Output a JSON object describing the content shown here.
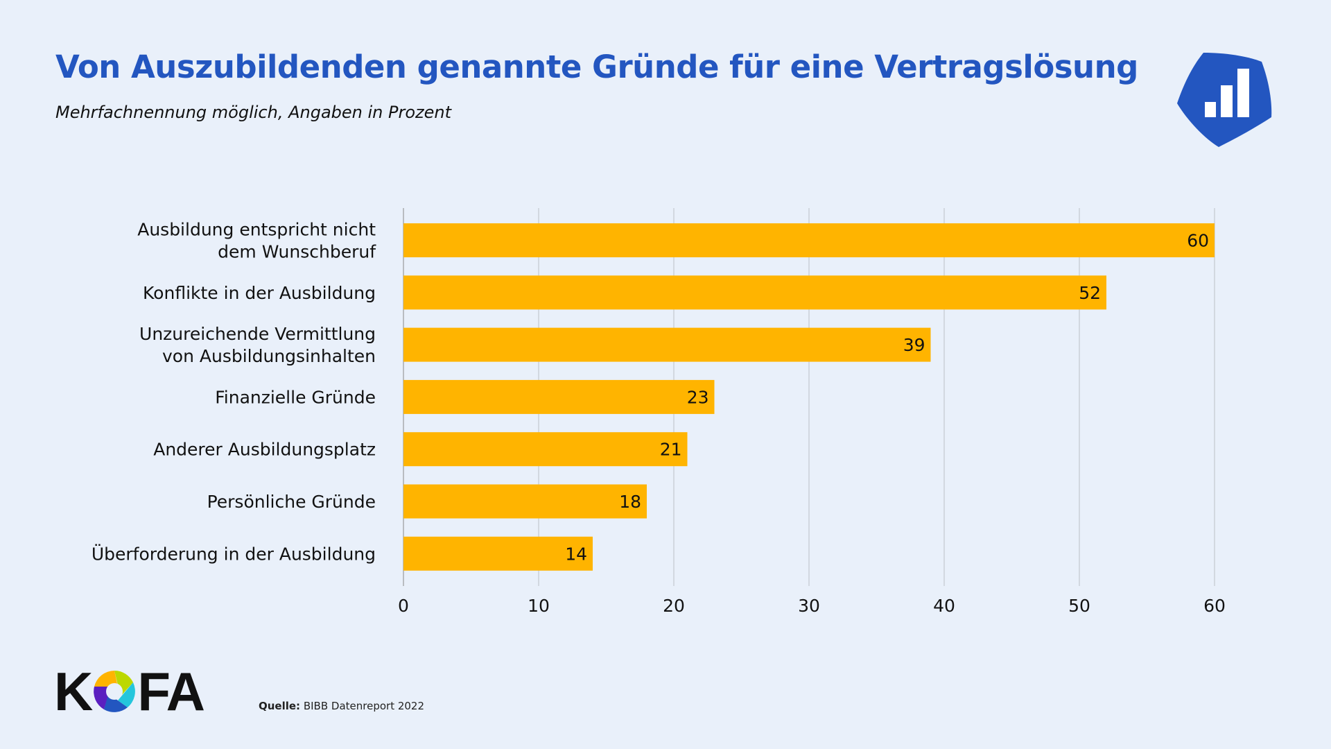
{
  "header": {
    "title": "Von Auszubildenden genannte Gründe für eine Vertragslösung",
    "subtitle": "Mehrfachnennung möglich, Angaben in Prozent"
  },
  "badge": {
    "icon": "bar-chart-icon",
    "color": "#2356c0"
  },
  "chart_data": {
    "type": "bar",
    "orientation": "horizontal",
    "categories": [
      "Ausbildung entspricht nicht\ndem Wunschberuf",
      "Konflikte in der Ausbildung",
      "Unzureichende Vermittlung\nvon Ausbildungsinhalten",
      "Finanzielle Gründe",
      "Anderer Ausbildungsplatz",
      "Persönliche Gründe",
      "Überforderung in der Ausbildung"
    ],
    "values": [
      60,
      52,
      39,
      23,
      21,
      18,
      14
    ],
    "xlim": [
      0,
      60
    ],
    "xticks": [
      "0",
      "10",
      "20",
      "30",
      "40",
      "50",
      "60"
    ],
    "grid": true,
    "bar_color": "#ffb400",
    "data_labels": true
  },
  "footer": {
    "logo": "KOFA",
    "source_label": "Quelle:",
    "source_text": "BIBB Datenreport 2022"
  }
}
